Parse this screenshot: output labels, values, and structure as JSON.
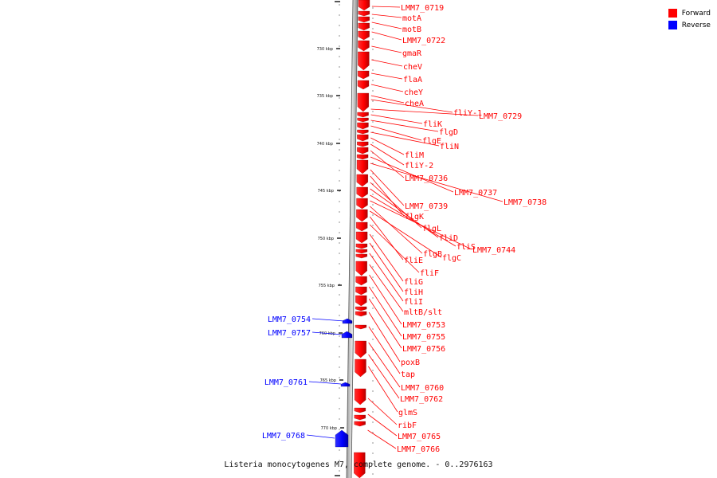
{
  "legend": {
    "forward_label": "Forward",
    "reverse_label": "Reverse",
    "forward_color": "#ff0000",
    "reverse_color": "#0000ff"
  },
  "caption": "Listeria monocytogenes M7, complete genome. - 0..2976163",
  "axis": {
    "ticks": [
      "730 kbp",
      "735 kbp",
      "740 kbp",
      "745 kbp",
      "750 kbp",
      "755 kbp",
      "760 kbp",
      "765 kbp",
      "770 kbp"
    ]
  },
  "genes": {
    "forward": [
      "LMM7_0719",
      "motA",
      "motB",
      "LMM7_0722",
      "gmaR",
      "cheV",
      "flaA",
      "cheY",
      "cheA",
      "fliY-1",
      "LMM7_0729",
      "fliK",
      "flgD",
      "flgE",
      "fliN",
      "fliM",
      "fliY-2",
      "LMM7_0736",
      "LMM7_0737",
      "LMM7_0738",
      "LMM7_0739",
      "flgK",
      "flgL",
      "fliD",
      "fliS",
      "LMM7_0744",
      "flgB",
      "flgC",
      "fliE",
      "fliF",
      "fliG",
      "fliH",
      "fliI",
      "mltB/slt",
      "LMM7_0753",
      "LMM7_0755",
      "LMM7_0756",
      "poxB",
      "tap",
      "LMM7_0760",
      "LMM7_0762",
      "glmS",
      "ribF",
      "LMM7_0765",
      "LMM7_0766"
    ],
    "reverse": [
      "LMM7_0754",
      "LMM7_0757",
      "LMM7_0761",
      "LMM7_0768"
    ]
  }
}
